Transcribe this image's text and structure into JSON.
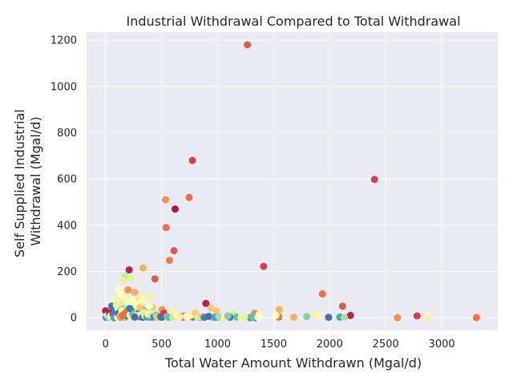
{
  "chart_data": {
    "type": "scatter",
    "title": "Industrial Withdrawal Compared to Total Withdrawal",
    "xlabel": "Total Water Amount Withdrawn (Mgal/d)",
    "ylabel": [
      "Self Supplied Industrial",
      "Withdrawal (Mgal/d)"
    ],
    "xlim": [
      -170,
      3500
    ],
    "ylim": [
      -55,
      1235
    ],
    "xticks": [
      0,
      500,
      1000,
      1500,
      2000,
      2500,
      3000
    ],
    "yticks": [
      0,
      200,
      400,
      600,
      800,
      1000,
      1200
    ],
    "grid": true,
    "colormap": "Spectral",
    "points": [
      [
        1265,
        1180,
        0.15
      ],
      [
        775,
        680,
        0.1
      ],
      [
        745,
        520,
        0.2
      ],
      [
        535,
        510,
        0.25
      ],
      [
        620,
        470,
        0.03
      ],
      [
        540,
        390,
        0.2
      ],
      [
        570,
        248,
        0.22
      ],
      [
        610,
        290,
        0.15
      ],
      [
        2400,
        598,
        0.1
      ],
      [
        1410,
        222,
        0.1
      ],
      [
        210,
        207,
        0.05
      ],
      [
        335,
        215,
        0.3
      ],
      [
        440,
        168,
        0.15
      ],
      [
        175,
        180,
        0.65
      ],
      [
        230,
        172,
        0.6
      ],
      [
        895,
        62,
        0.05
      ],
      [
        1935,
        103,
        0.2
      ],
      [
        2115,
        50,
        0.15
      ],
      [
        2185,
        10,
        0.05
      ],
      [
        2780,
        8,
        0.1
      ],
      [
        3310,
        1,
        0.2
      ],
      [
        2605,
        0,
        0.25
      ],
      [
        2870,
        8,
        0.5
      ],
      [
        2875,
        0,
        0.45
      ],
      [
        1550,
        35,
        0.3
      ],
      [
        1545,
        3,
        0.2
      ],
      [
        1330,
        20,
        0.25
      ],
      [
        940,
        42,
        0.35
      ],
      [
        990,
        30,
        0.35
      ],
      [
        1140,
        14,
        0.65
      ],
      [
        1370,
        14,
        0.55
      ],
      [
        1680,
        2,
        0.3
      ],
      [
        1795,
        5,
        0.75
      ],
      [
        1865,
        14,
        0.45
      ],
      [
        1895,
        3,
        0.55
      ],
      [
        1990,
        2,
        0.95
      ],
      [
        2090,
        3,
        0.85
      ],
      [
        2130,
        2,
        0.7
      ],
      [
        1110,
        2,
        0.9
      ],
      [
        1290,
        0,
        0.85
      ],
      [
        1340,
        0,
        0.9
      ],
      [
        1000,
        3,
        0.95
      ],
      [
        840,
        2,
        0.85
      ],
      [
        780,
        3,
        0.9
      ],
      [
        960,
        1,
        0.7
      ],
      [
        700,
        8,
        0.8
      ],
      [
        650,
        8,
        0.3
      ],
      [
        690,
        2,
        0.2
      ],
      [
        580,
        30,
        0.45
      ],
      [
        480,
        10,
        0.6
      ],
      [
        420,
        45,
        0.35
      ],
      [
        505,
        35,
        0.25
      ],
      [
        470,
        2,
        0.8
      ],
      [
        400,
        3,
        0.95
      ],
      [
        360,
        30,
        0.7
      ],
      [
        320,
        40,
        0.8
      ],
      [
        285,
        20,
        0.95
      ],
      [
        260,
        110,
        0.3
      ],
      [
        290,
        75,
        0.4
      ],
      [
        320,
        90,
        0.45
      ],
      [
        180,
        95,
        0.55
      ],
      [
        120,
        125,
        0.5
      ],
      [
        100,
        80,
        0.45
      ],
      [
        70,
        70,
        0.55
      ],
      [
        150,
        60,
        0.6
      ],
      [
        200,
        120,
        0.25
      ],
      [
        205,
        60,
        0.5
      ],
      [
        160,
        40,
        0.7
      ],
      [
        250,
        40,
        0.6
      ],
      [
        230,
        30,
        0.85
      ],
      [
        210,
        20,
        0.9
      ],
      [
        170,
        10,
        0.6
      ],
      [
        140,
        20,
        0.85
      ],
      [
        120,
        5,
        0.95
      ],
      [
        110,
        35,
        0.3
      ],
      [
        90,
        25,
        0.8
      ],
      [
        80,
        45,
        0.5
      ],
      [
        60,
        10,
        0.6
      ],
      [
        50,
        30,
        0.9
      ],
      [
        40,
        5,
        0.1
      ],
      [
        30,
        15,
        0.95
      ],
      [
        20,
        25,
        0.35
      ],
      [
        10,
        5,
        0.1
      ],
      [
        5,
        2,
        0.9
      ],
      [
        0,
        30,
        0.05
      ],
      [
        15,
        10,
        0.5
      ],
      [
        25,
        3,
        0.7
      ],
      [
        35,
        20,
        0.05
      ],
      [
        45,
        8,
        0.5
      ],
      [
        55,
        50,
        0.95
      ],
      [
        65,
        15,
        0.9
      ],
      [
        75,
        0,
        0.85
      ],
      [
        95,
        12,
        0.92
      ],
      [
        105,
        3,
        0.55
      ],
      [
        115,
        18,
        0.95
      ],
      [
        130,
        8,
        0.35
      ],
      [
        135,
        2,
        0.25
      ],
      [
        145,
        30,
        0.55
      ],
      [
        155,
        5,
        0.85
      ],
      [
        165,
        15,
        0.9
      ],
      [
        175,
        2,
        0.75
      ],
      [
        185,
        25,
        0.2
      ],
      [
        195,
        8,
        0.95
      ],
      [
        215,
        12,
        0.55
      ],
      [
        225,
        5,
        0.45
      ],
      [
        240,
        18,
        0.8
      ],
      [
        255,
        3,
        0.75
      ],
      [
        270,
        10,
        0.65
      ],
      [
        300,
        5,
        0.9
      ],
      [
        310,
        12,
        0.55
      ],
      [
        330,
        2,
        0.95
      ],
      [
        340,
        22,
        0.6
      ],
      [
        350,
        8,
        0.4
      ],
      [
        370,
        3,
        0.85
      ],
      [
        380,
        15,
        0.55
      ],
      [
        390,
        50,
        0.5
      ],
      [
        410,
        8,
        0.65
      ],
      [
        430,
        3,
        0.9
      ],
      [
        450,
        12,
        0.75
      ],
      [
        460,
        2,
        0.35
      ],
      [
        490,
        5,
        0.9
      ],
      [
        500,
        2,
        0.95
      ],
      [
        520,
        20,
        0.1
      ],
      [
        550,
        5,
        0.75
      ],
      [
        560,
        2,
        0.8
      ],
      [
        600,
        3,
        0.65
      ],
      [
        630,
        12,
        0.55
      ],
      [
        660,
        3,
        0.45
      ],
      [
        720,
        5,
        0.5
      ],
      [
        760,
        10,
        0.55
      ],
      [
        800,
        20,
        0.35
      ],
      [
        820,
        2,
        0.4
      ],
      [
        860,
        4,
        0.35
      ],
      [
        880,
        2,
        0.9
      ],
      [
        920,
        6,
        0.95
      ],
      [
        975,
        2,
        0.85
      ],
      [
        1010,
        5,
        0.7
      ],
      [
        1060,
        2,
        0.45
      ],
      [
        1090,
        8,
        0.75
      ],
      [
        1170,
        3,
        0.8
      ],
      [
        1210,
        1,
        0.55
      ],
      [
        1240,
        2,
        0.6
      ],
      [
        1310,
        5,
        0.8
      ],
      [
        1360,
        2,
        0.5
      ],
      [
        1520,
        10,
        0.5
      ],
      [
        260,
        3,
        0.95
      ],
      [
        280,
        55,
        0.5
      ],
      [
        315,
        65,
        0.55
      ],
      [
        190,
        85,
        0.55
      ],
      [
        240,
        75,
        0.5
      ],
      [
        130,
        100,
        0.5
      ],
      [
        160,
        160,
        0.6
      ],
      [
        305,
        45,
        0.35
      ],
      [
        345,
        85,
        0.55
      ],
      [
        400,
        90,
        0.45
      ],
      [
        150,
        10,
        0.2
      ],
      [
        95,
        55,
        0.6
      ],
      [
        215,
        40,
        0.92
      ]
    ]
  }
}
